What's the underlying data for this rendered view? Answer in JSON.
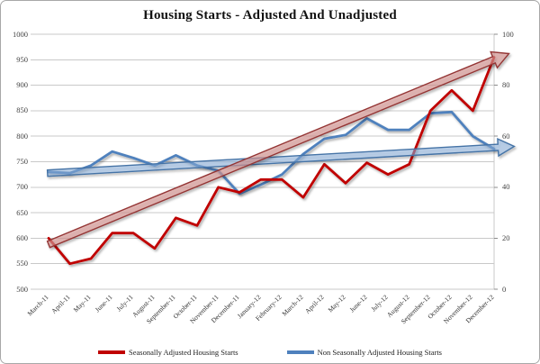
{
  "chart_data": {
    "type": "line",
    "title": "Housing Starts - Adjusted And Unadjusted",
    "grid": true,
    "legend_position": "bottom",
    "categories": [
      "March-11",
      "April-11",
      "May-11",
      "June-11",
      "July-11",
      "August-11",
      "September-11",
      "October-11",
      "November-11",
      "December-11",
      "January-12",
      "February-12",
      "March-12",
      "April-12",
      "May-12",
      "June-12",
      "July-12",
      "August-12",
      "September-12",
      "October-12",
      "November-12",
      "December-12"
    ],
    "series": [
      {
        "name": "Seasonally Adjusted Housing Starts",
        "axis": "left",
        "color": "#C00000",
        "values": [
          600,
          550,
          560,
          610,
          610,
          580,
          640,
          625,
          700,
          690,
          715,
          715,
          680,
          745,
          708,
          748,
          725,
          745,
          850,
          890,
          850,
          955
        ]
      },
      {
        "name": "Non Seasonally Adjusted Housing Starts",
        "axis": "right",
        "color": "#4F81BD",
        "values": [
          46,
          45.5,
          48.5,
          54,
          51.5,
          48.5,
          52.5,
          48.5,
          46.5,
          37.5,
          41,
          45,
          53,
          59,
          60.5,
          67,
          62.5,
          62.5,
          69,
          69.5,
          60,
          55
        ]
      }
    ],
    "left_axis": {
      "min": 500,
      "max": 1000,
      "step": 50,
      "tick_labels": [
        "1000",
        "950",
        "900",
        "850",
        "800",
        "750",
        "700",
        "650",
        "600",
        "550",
        "500"
      ]
    },
    "right_axis": {
      "min": 0,
      "max": 100,
      "step": 20,
      "tick_labels": [
        "100",
        "80",
        "60",
        "40",
        "20",
        "0"
      ]
    },
    "trend_arrows": [
      {
        "name": "blue-trend-arrow",
        "axis": "right",
        "start_cat": -0.05,
        "start_value": 45.5,
        "tip_cat": 21.95,
        "tip_value": 56,
        "fill": "rgba(141,179,226,0.5)",
        "edge": "#4473A6"
      },
      {
        "name": "red-trend-arrow",
        "axis": "left",
        "start_cat": 0,
        "start_value": 588,
        "tip_cat": 21.7,
        "tip_value": 962,
        "fill": "rgba(217,151,149,0.62)",
        "edge": "#943634"
      }
    ]
  }
}
